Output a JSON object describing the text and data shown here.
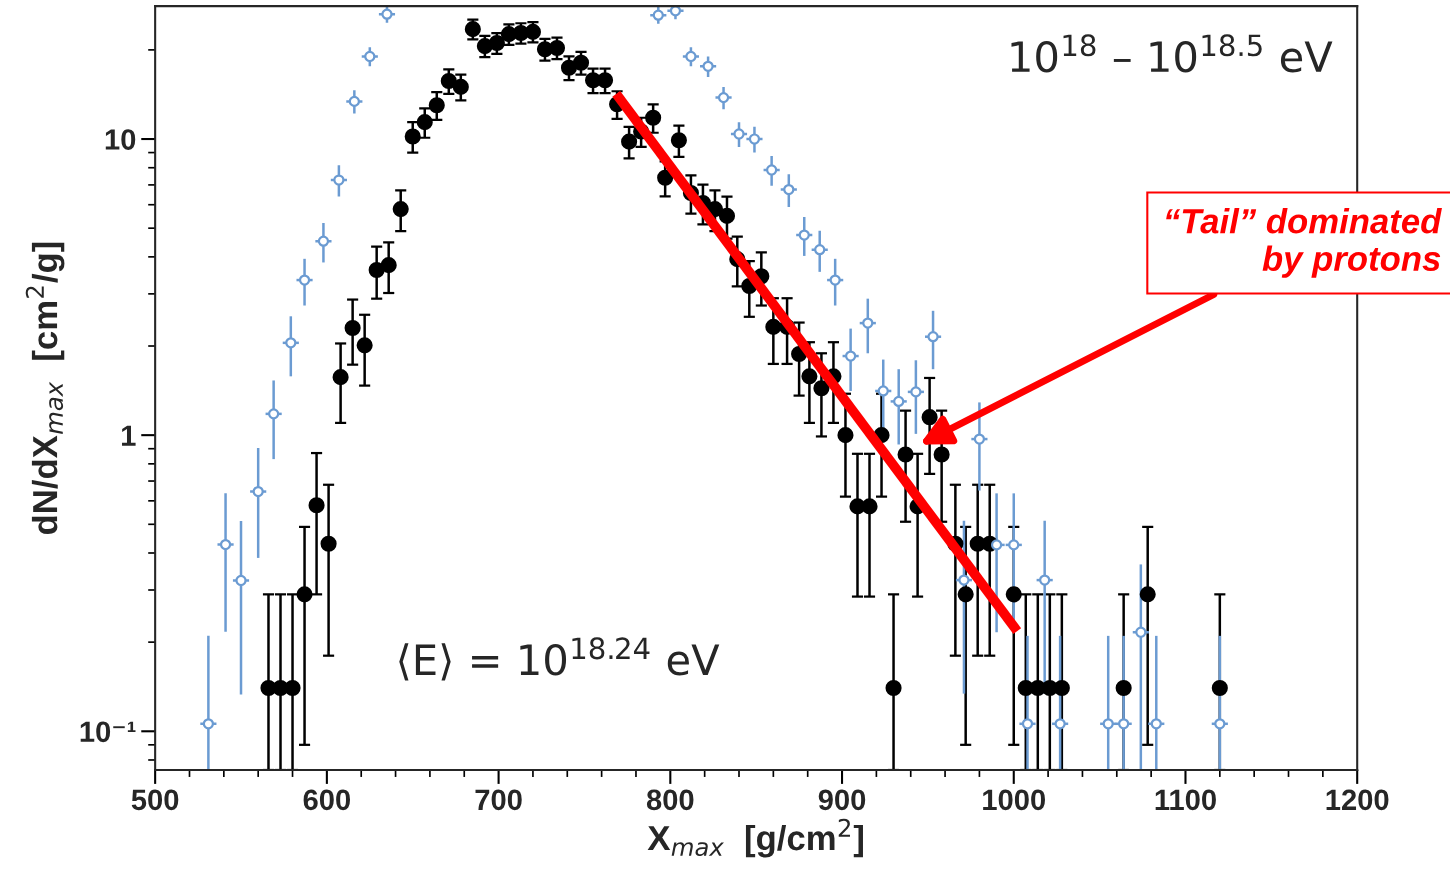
{
  "chart_data": {
    "type": "scatter",
    "xlabel": "X$_{max}$  [g/cm$^{2}$]",
    "ylabel": "dN/dX$_{max}$  [cm$^{2}$/g]",
    "log": "y",
    "grid": false,
    "legend": false,
    "xlim": [
      500,
      1200
    ],
    "xticks": [
      500,
      600,
      700,
      800,
      900,
      1000,
      1100,
      1200
    ],
    "ylim": [
      0.074,
      28.1
    ],
    "yticks": [
      {
        "value": 0.1,
        "label": "10⁻¹"
      },
      1,
      10
    ],
    "annotations": [
      "10$^{18}$ – 10$^{18.5}$ eV",
      "⟨E⟩ = 10$^{18.24}$ eV",
      "“Tail” dominated\nby protons"
    ],
    "series": [
      {
        "color": "#000000",
        "marker": "circle",
        "x": [
          566,
          573,
          580,
          587,
          594,
          601,
          608,
          615,
          622,
          629,
          636,
          643,
          650,
          657,
          664,
          671,
          678,
          685,
          692,
          699,
          706,
          713,
          720,
          727,
          734,
          741,
          748,
          755,
          762,
          769,
          776,
          783,
          790,
          797,
          805,
          812,
          819,
          826,
          833,
          839,
          846,
          853,
          860,
          868,
          875,
          881,
          888,
          895,
          902,
          909,
          916,
          923,
          930,
          937,
          944,
          951,
          958,
          966,
          972,
          979,
          986,
          1000,
          1007,
          1014,
          1021,
          1028,
          1064,
          1078,
          1120
        ],
        "values": [
          0.14,
          0.14,
          0.14,
          0.29,
          0.58,
          0.43,
          1.57,
          2.3,
          2.01,
          3.61,
          3.75,
          5.8,
          10.2,
          11.4,
          13.0,
          15.7,
          15.0,
          23.5,
          20.6,
          21.1,
          22.6,
          22.8,
          23.0,
          20.1,
          20.3,
          17.4,
          18.1,
          15.8,
          15.8,
          13.1,
          9.8,
          10.6,
          11.8,
          7.4,
          9.9,
          6.57,
          6.08,
          5.8,
          5.5,
          3.93,
          3.19,
          3.44,
          2.32,
          2.32,
          1.88,
          1.58,
          1.44,
          1.58,
          1.0,
          0.575,
          0.575,
          1.0,
          0.14,
          0.86,
          0.575,
          1.15,
          0.86,
          0.43,
          0.29,
          0.43,
          0.43,
          0.29,
          0.14,
          0.14,
          0.14,
          0.14,
          0.14,
          0.29,
          0.14
        ],
        "errors": [
          [
            0.074,
            0.29
          ],
          [
            0.074,
            0.29
          ],
          [
            0.074,
            0.29
          ],
          0.2,
          0.29,
          0.25,
          0.47,
          0.57,
          0.54,
          0.72,
          0.73,
          0.91,
          1.2,
          1.3,
          1.4,
          1.5,
          1.5,
          1.8,
          1.7,
          1.7,
          1.8,
          1.8,
          1.8,
          1.7,
          1.7,
          1.6,
          1.6,
          1.5,
          1.5,
          1.4,
          1.2,
          1.2,
          1.3,
          1.0,
          1.2,
          0.97,
          0.93,
          0.91,
          0.89,
          0.75,
          0.68,
          0.7,
          0.58,
          0.58,
          0.52,
          0.48,
          0.45,
          0.48,
          0.38,
          0.29,
          0.29,
          0.38,
          [
            0.074,
            0.29
          ],
          0.35,
          0.29,
          0.41,
          0.35,
          0.25,
          0.2,
          0.25,
          0.25,
          0.2,
          [
            0.074,
            0.29
          ],
          [
            0.074,
            0.29
          ],
          [
            0.074,
            0.29
          ],
          [
            0.074,
            0.29
          ],
          [
            0.074,
            0.29
          ],
          0.2,
          [
            0.074,
            0.29
          ]
        ]
      },
      {
        "color": "#6b9bd2",
        "marker": "circle",
        "x": [
          531,
          541,
          550,
          560,
          569,
          579,
          587,
          598,
          607,
          616,
          625,
          635,
          793,
          803,
          812,
          822,
          831,
          840,
          849,
          859,
          869,
          878,
          887,
          896,
          905,
          915,
          924,
          933,
          943,
          953,
          971,
          980,
          990,
          1000,
          1008,
          1018,
          1027,
          1055,
          1064,
          1074,
          1083,
          1120
        ],
        "values": [
          0.106,
          0.427,
          0.323,
          0.645,
          1.18,
          2.05,
          3.34,
          4.52,
          7.27,
          13.4,
          19.0,
          26.4,
          26.2,
          27.1,
          19.0,
          17.6,
          13.8,
          10.4,
          10.0,
          7.86,
          6.75,
          4.74,
          4.23,
          3.34,
          1.85,
          2.39,
          1.41,
          1.3,
          1.4,
          2.15,
          0.324,
          0.97,
          0.426,
          0.426,
          0.106,
          0.324,
          0.106,
          0.106,
          0.106,
          0.216,
          0.106,
          0.106
        ],
        "errors": [
          [
            0.074,
            0.21
          ],
          0.21,
          0.19,
          0.26,
          0.35,
          0.47,
          0.6,
          0.69,
          0.88,
          1.2,
          1.4,
          1.7,
          1.7,
          [
            25.4,
            28.1
          ],
          1.4,
          1.4,
          1.2,
          1.0,
          1.0,
          0.91,
          0.85,
          0.71,
          0.67,
          0.6,
          0.44,
          0.5,
          0.39,
          0.37,
          0.39,
          0.48,
          0.19,
          0.32,
          0.21,
          0.21,
          [
            0.074,
            0.21
          ],
          0.19,
          [
            0.074,
            0.21
          ],
          [
            0.074,
            0.21
          ],
          [
            0.074,
            0.21
          ],
          0.15,
          [
            0.074,
            0.21
          ],
          [
            0.074,
            0.21
          ]
        ],
        "xerrors": [
          4.7,
          4.7,
          4.7,
          4.7,
          4.7,
          4.7,
          4.7,
          4.7,
          4.7,
          4.7,
          4.7,
          4.7,
          4.7,
          4.7,
          4.7,
          4.7,
          4.7,
          4.7,
          4.7,
          4.7,
          4.7,
          4.7,
          4.7,
          4.7,
          4.7,
          4.7,
          4.7,
          4.7,
          4.7,
          4.7,
          4.7,
          4.7,
          4.7,
          4.7,
          4.7,
          4.7,
          4.7,
          4.7,
          4.7,
          4.7,
          4.7,
          4.7
        ]
      },
      {
        "type": "line",
        "color": "#ff0000",
        "marker": "none",
        "line_style": "solid",
        "x": [
          768.5,
          1002
        ],
        "values": [
          14.2,
          0.218
        ]
      }
    ]
  }
}
